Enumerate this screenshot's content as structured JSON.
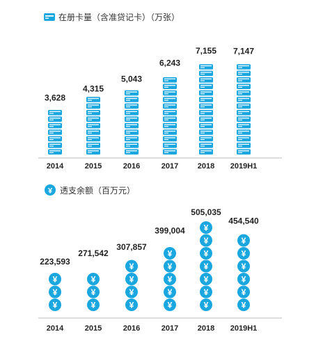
{
  "colors": {
    "card": "#1aa7e0",
    "card_stripe": "#ffffff",
    "coin": "#1aa7e0",
    "coin_symbol": "#ffffff",
    "text": "#222222",
    "axis": "#bbbbbb"
  },
  "chart_data": [
    {
      "type": "bar",
      "title": "",
      "legend": "在册卡量（含准贷记卡）（万张）",
      "icon": "credit-card-icon",
      "categories": [
        "2014",
        "2015",
        "2016",
        "2017",
        "2018",
        "2019H1"
      ],
      "values": [
        3628,
        4315,
        5043,
        6243,
        7155,
        7147
      ],
      "value_labels": [
        "3,628",
        "4,315",
        "5,043",
        "6,243",
        "7,155",
        "7,147"
      ],
      "unit": "万张",
      "ylim": [
        0,
        8000
      ],
      "grid": false,
      "legend_position": "top-left"
    },
    {
      "type": "bar",
      "title": "",
      "legend": "透支余额（百万元）",
      "icon": "yuan-coin-icon",
      "categories": [
        "2014",
        "2015",
        "2016",
        "2017",
        "2018",
        "2019H1"
      ],
      "values": [
        223593,
        271542,
        307857,
        399004,
        505035,
        454540
      ],
      "value_labels": [
        "223,593",
        "271,542",
        "307,857",
        "399,004",
        "505,035",
        "454,540"
      ],
      "unit": "百万元",
      "ylim": [
        0,
        520000
      ],
      "grid": false,
      "legend_position": "top-left"
    }
  ]
}
